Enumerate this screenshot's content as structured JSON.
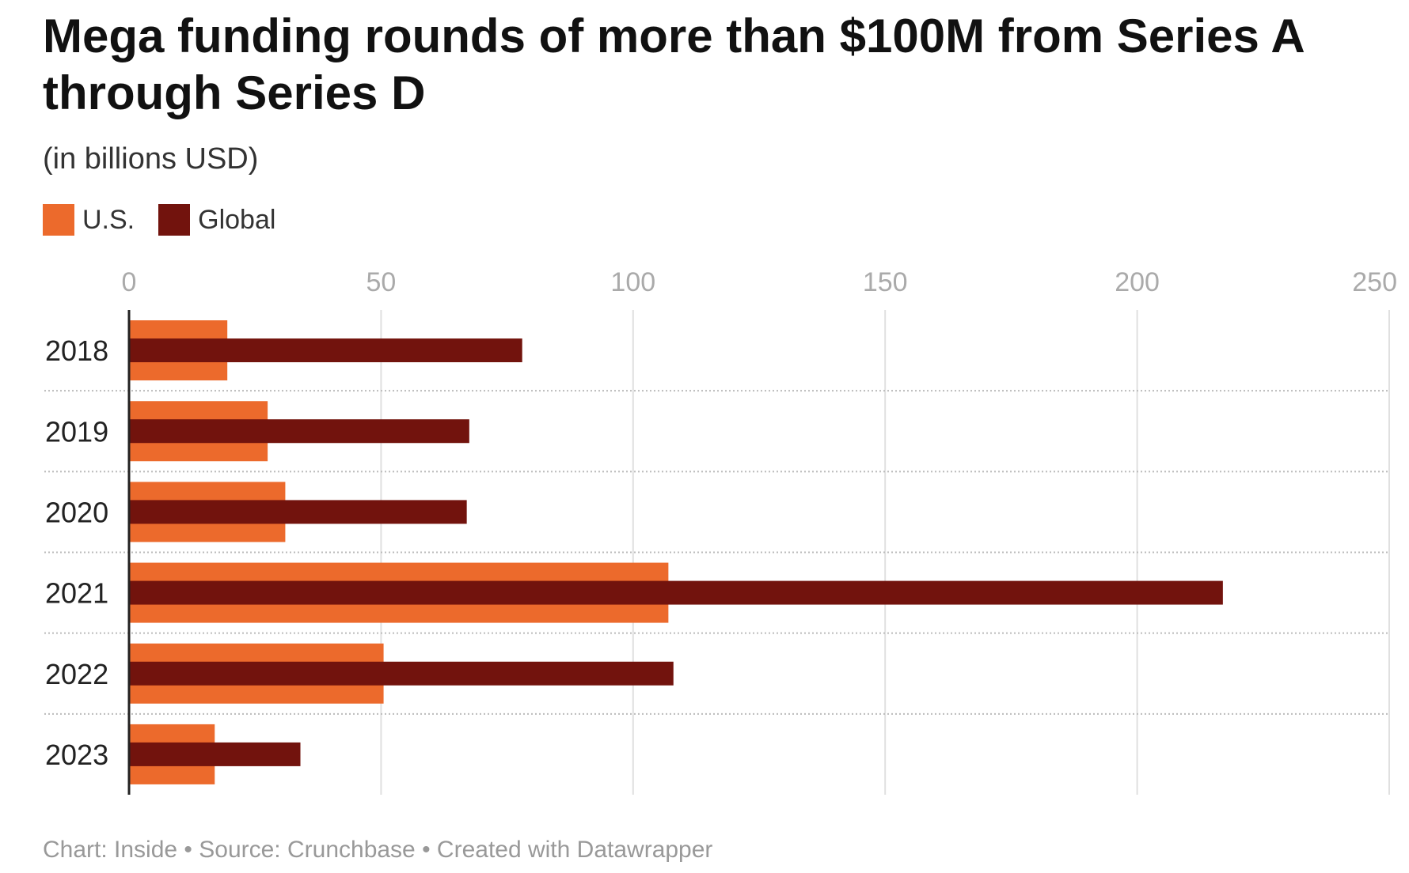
{
  "title": "Mega funding rounds of more than $100M from Series A through Series D",
  "subtitle": "(in billions USD)",
  "footer": "Chart: Inside • Source: Crunchbase • Created with Datawrapper",
  "legend": [
    {
      "label": "U.S.",
      "color": "#ec6a2c"
    },
    {
      "label": "Global",
      "color": "#72130d"
    }
  ],
  "chart_data": {
    "type": "bar",
    "orientation": "horizontal",
    "categories": [
      "2018",
      "2019",
      "2020",
      "2021",
      "2022",
      "2023"
    ],
    "series": [
      {
        "name": "U.S.",
        "color": "#ec6a2c",
        "values": [
          19.5,
          27.5,
          31,
          107,
          50.5,
          17
        ]
      },
      {
        "name": "Global",
        "color": "#72130d",
        "values": [
          78,
          67.5,
          67,
          217,
          108,
          34
        ]
      }
    ],
    "xlim": [
      0,
      250
    ],
    "xticks": [
      0,
      50,
      100,
      150,
      200,
      250
    ],
    "xtick_labels": [
      "0",
      "50",
      "100",
      "150",
      "200",
      "250"
    ],
    "xaxis_position": "top",
    "grid": true,
    "legend_position": "top-left"
  }
}
